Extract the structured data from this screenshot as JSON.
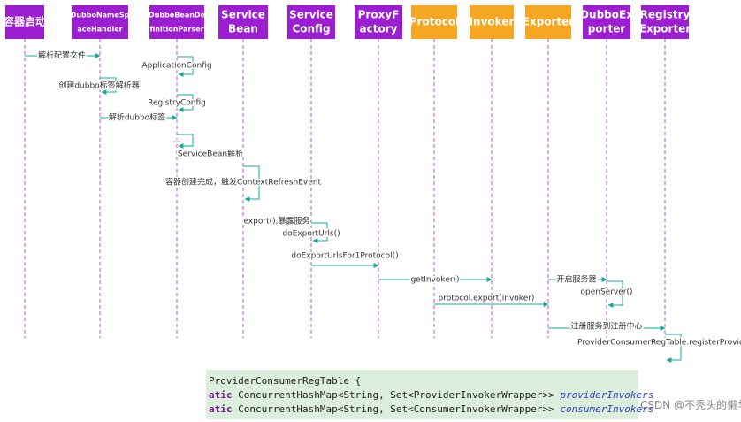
{
  "participants": [
    {
      "label": [
        "容器启动"
      ],
      "color": "#9b1fd1"
    },
    {
      "label": [
        "DubboNameSp",
        "aceHandler"
      ],
      "color": "#9b1fd1"
    },
    {
      "label": [
        "DubboBeanDe",
        "finitionParser"
      ],
      "color": "#9b1fd1"
    },
    {
      "label": [
        "Service",
        "Bean"
      ],
      "color": "#9b1fd1"
    },
    {
      "label": [
        "Service",
        "Config"
      ],
      "color": "#9b1fd1"
    },
    {
      "label": [
        "ProxyF",
        "actory"
      ],
      "color": "#9b1fd1"
    },
    {
      "label": [
        "Protocol"
      ],
      "color": "#f5a623"
    },
    {
      "label": [
        "Invoker"
      ],
      "color": "#f5a623"
    },
    {
      "label": [
        "Exporter"
      ],
      "color": "#f5a623"
    },
    {
      "label": [
        "DubboEx",
        "porter"
      ],
      "color": "#9b1fd1"
    },
    {
      "label": [
        "Registry",
        "Exporter"
      ],
      "color": "#9b1fd1"
    }
  ],
  "messages": [
    "解析配置文件",
    "ApplicationConfig",
    "创建dubbo标签解析器",
    "RegistryConfig",
    "解析dubbo标签",
    "...",
    "ServiceBean解析",
    "容器创建完成，触发ContextRefreshEvent",
    "export(),暴露服务",
    "doExportUrls()",
    "doExportUrlsFor1Protocol()",
    "getInvoker()",
    "protocol.export(invoker)",
    "开启服务器",
    "openServer()",
    "注册服务到注册中心",
    "ProviderConsumerRegTable.registerProvider"
  ],
  "code": {
    "lines": [
      {
        "text": "ProviderConsumerRegTable {"
      },
      {
        "keyword": "atic",
        "text": "ConcurrentHashMap<String, Set<ProviderInvokerWrapper>>",
        "field": "providerInvokers"
      },
      {
        "keyword": "atic",
        "text": "ConcurrentHashMap<String, Set<ConsumerInvokerWrapper>>",
        "field": "consumerInvokers"
      }
    ]
  },
  "watermark": "CSDN @不秃头的懒羊羊程序猿"
}
